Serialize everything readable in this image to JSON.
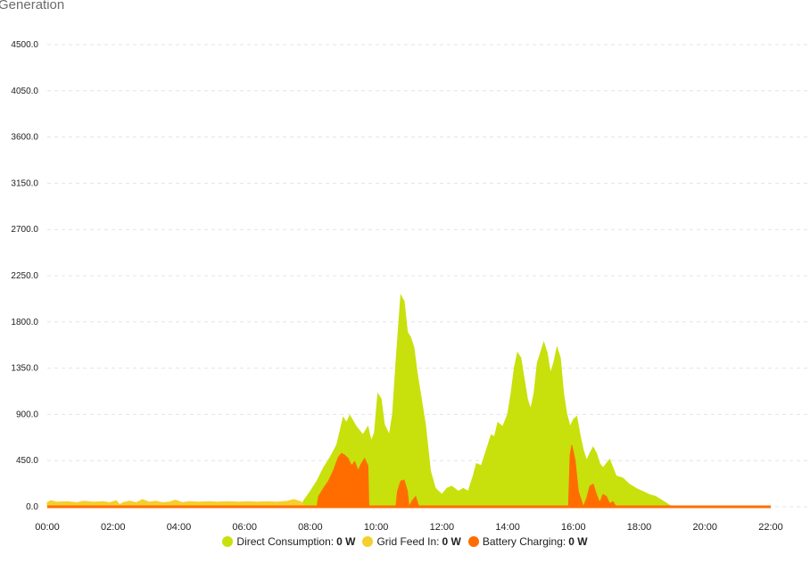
{
  "page": {
    "title": "Generation"
  },
  "chart_data": {
    "type": "area",
    "ylim": [
      0,
      4500
    ],
    "yticks": [
      "0.0",
      "450.0",
      "900.0",
      "1350.0",
      "1800.0",
      "2250.0",
      "2700.0",
      "3150.0",
      "3600.0",
      "4050.0",
      "4500.0"
    ],
    "xticks": [
      "00:00",
      "02:00",
      "04:00",
      "06:00",
      "08:00",
      "10:00",
      "12:00",
      "14:00",
      "16:00",
      "18:00",
      "20:00",
      "22:00"
    ],
    "x_hours_range": [
      0,
      22
    ],
    "series": [
      {
        "name": "Direct Consumption",
        "value_label": "0 W",
        "color": "#c8e00c",
        "points": [
          [
            0,
            0
          ],
          [
            7.7,
            0
          ],
          [
            7.8,
            60
          ],
          [
            8.0,
            150
          ],
          [
            8.2,
            250
          ],
          [
            8.4,
            380
          ],
          [
            8.6,
            480
          ],
          [
            8.8,
            600
          ],
          [
            9.0,
            870
          ],
          [
            9.1,
            820
          ],
          [
            9.2,
            890
          ],
          [
            9.4,
            780
          ],
          [
            9.6,
            700
          ],
          [
            9.75,
            780
          ],
          [
            9.85,
            640
          ],
          [
            9.95,
            720
          ],
          [
            10.05,
            1100
          ],
          [
            10.15,
            1050
          ],
          [
            10.25,
            800
          ],
          [
            10.4,
            700
          ],
          [
            10.5,
            900
          ],
          [
            10.6,
            1400
          ],
          [
            10.75,
            2060
          ],
          [
            10.85,
            2000
          ],
          [
            10.95,
            1700
          ],
          [
            11.05,
            1650
          ],
          [
            11.15,
            1550
          ],
          [
            11.25,
            1300
          ],
          [
            11.35,
            1100
          ],
          [
            11.5,
            800
          ],
          [
            11.65,
            350
          ],
          [
            11.8,
            180
          ],
          [
            12.0,
            120
          ],
          [
            12.15,
            180
          ],
          [
            12.3,
            200
          ],
          [
            12.5,
            150
          ],
          [
            12.65,
            180
          ],
          [
            12.8,
            150
          ],
          [
            12.95,
            300
          ],
          [
            13.05,
            420
          ],
          [
            13.2,
            400
          ],
          [
            13.35,
            550
          ],
          [
            13.5,
            700
          ],
          [
            13.6,
            680
          ],
          [
            13.7,
            820
          ],
          [
            13.85,
            780
          ],
          [
            14.0,
            900
          ],
          [
            14.1,
            1100
          ],
          [
            14.2,
            1350
          ],
          [
            14.3,
            1500
          ],
          [
            14.4,
            1450
          ],
          [
            14.5,
            1250
          ],
          [
            14.6,
            1050
          ],
          [
            14.7,
            950
          ],
          [
            14.8,
            1100
          ],
          [
            14.9,
            1400
          ],
          [
            15.0,
            1500
          ],
          [
            15.1,
            1600
          ],
          [
            15.2,
            1500
          ],
          [
            15.3,
            1300
          ],
          [
            15.4,
            1400
          ],
          [
            15.5,
            1550
          ],
          [
            15.6,
            1450
          ],
          [
            15.7,
            1100
          ],
          [
            15.8,
            900
          ],
          [
            15.9,
            780
          ],
          [
            16.0,
            850
          ],
          [
            16.1,
            880
          ],
          [
            16.2,
            700
          ],
          [
            16.3,
            550
          ],
          [
            16.4,
            450
          ],
          [
            16.5,
            520
          ],
          [
            16.6,
            580
          ],
          [
            16.7,
            520
          ],
          [
            16.8,
            420
          ],
          [
            16.9,
            380
          ],
          [
            17.0,
            420
          ],
          [
            17.1,
            460
          ],
          [
            17.2,
            380
          ],
          [
            17.3,
            300
          ],
          [
            17.5,
            280
          ],
          [
            17.7,
            220
          ],
          [
            17.9,
            180
          ],
          [
            18.1,
            150
          ],
          [
            18.3,
            120
          ],
          [
            18.5,
            100
          ],
          [
            18.7,
            60
          ],
          [
            18.9,
            20
          ],
          [
            19.0,
            0
          ],
          [
            22,
            0
          ]
        ]
      },
      {
        "name": "Grid Feed In",
        "value_label": "0 W",
        "color": "#f5cf2d",
        "points": [
          [
            0,
            40
          ],
          [
            0.1,
            60
          ],
          [
            0.3,
            45
          ],
          [
            0.6,
            50
          ],
          [
            0.9,
            40
          ],
          [
            1.1,
            55
          ],
          [
            1.4,
            45
          ],
          [
            1.7,
            50
          ],
          [
            1.9,
            40
          ],
          [
            2.1,
            60
          ],
          [
            2.2,
            20
          ],
          [
            2.3,
            40
          ],
          [
            2.5,
            55
          ],
          [
            2.7,
            40
          ],
          [
            2.9,
            70
          ],
          [
            3.1,
            45
          ],
          [
            3.3,
            55
          ],
          [
            3.5,
            40
          ],
          [
            3.7,
            45
          ],
          [
            3.9,
            65
          ],
          [
            4.1,
            40
          ],
          [
            4.3,
            50
          ],
          [
            4.6,
            45
          ],
          [
            4.9,
            50
          ],
          [
            5.2,
            45
          ],
          [
            5.5,
            50
          ],
          [
            5.8,
            45
          ],
          [
            6.1,
            50
          ],
          [
            6.4,
            45
          ],
          [
            6.7,
            50
          ],
          [
            7.0,
            45
          ],
          [
            7.3,
            55
          ],
          [
            7.5,
            70
          ],
          [
            7.7,
            50
          ],
          [
            7.85,
            0
          ],
          [
            22,
            0
          ]
        ]
      },
      {
        "name": "Battery Charging",
        "value_label": "0 W",
        "color": "#ff6d00",
        "points": [
          [
            0,
            0
          ],
          [
            8.2,
            0
          ],
          [
            8.25,
            100
          ],
          [
            8.4,
            180
          ],
          [
            8.55,
            250
          ],
          [
            8.7,
            350
          ],
          [
            8.85,
            480
          ],
          [
            8.95,
            520
          ],
          [
            9.05,
            500
          ],
          [
            9.15,
            470
          ],
          [
            9.25,
            400
          ],
          [
            9.35,
            440
          ],
          [
            9.45,
            350
          ],
          [
            9.55,
            420
          ],
          [
            9.65,
            470
          ],
          [
            9.75,
            400
          ],
          [
            9.78,
            0
          ],
          [
            10.6,
            0
          ],
          [
            10.65,
            150
          ],
          [
            10.75,
            250
          ],
          [
            10.85,
            260
          ],
          [
            10.95,
            150
          ],
          [
            11.0,
            0
          ],
          [
            11.1,
            60
          ],
          [
            11.2,
            100
          ],
          [
            11.3,
            0
          ],
          [
            15.85,
            0
          ],
          [
            15.9,
            500
          ],
          [
            15.95,
            600
          ],
          [
            16.05,
            450
          ],
          [
            16.15,
            150
          ],
          [
            16.3,
            0
          ],
          [
            16.4,
            80
          ],
          [
            16.5,
            200
          ],
          [
            16.6,
            220
          ],
          [
            16.7,
            120
          ],
          [
            16.8,
            40
          ],
          [
            16.9,
            120
          ],
          [
            17.0,
            100
          ],
          [
            17.1,
            30
          ],
          [
            17.2,
            50
          ],
          [
            17.3,
            0
          ],
          [
            22,
            0
          ]
        ]
      }
    ]
  }
}
